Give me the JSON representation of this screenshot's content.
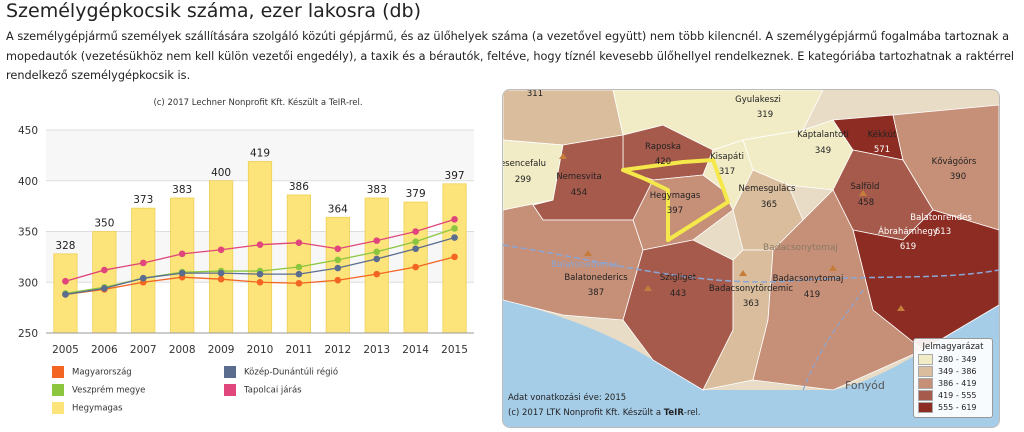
{
  "page": {
    "title": "Személygépkocsik száma, ezer lakosra (db)",
    "description": "A személygépjármű személyek szállítására szolgáló közúti gépjármű, és az ülőhelyek száma (a vezetővel együtt) nem több kilencnél. A személygépjármű fogalmába tartoznak a mopedautók (vezetésükhöz nem kell külön vezetői engedély), a taxik és a bérautók, feltéve, hogy tíznél kevesebb ülőhellyel rendelkeznek. E kategóriába tartozhatnak a raktérrel rendelkező személygépkocsik is."
  },
  "chart_data": {
    "type": "bar",
    "credit": "(c) 2017 Lechner Nonprofit Kft. Készült a TeIR-rel.",
    "categories": [
      "2005",
      "2006",
      "2007",
      "2008",
      "2009",
      "2010",
      "2011",
      "2012",
      "2013",
      "2014",
      "2015"
    ],
    "ylim": [
      250,
      450
    ],
    "yticks": [
      250,
      300,
      350,
      400,
      450
    ],
    "bar_series": {
      "name": "Hegymagas",
      "values": [
        328,
        350,
        373,
        383,
        400,
        419,
        386,
        364,
        383,
        379,
        397
      ],
      "labels": [
        "328",
        "350",
        "373",
        "383",
        "400",
        "419",
        "386",
        "364",
        "383",
        "379",
        "397"
      ],
      "color": "#fce37a"
    },
    "series": [
      {
        "name": "Magyarország",
        "color": "#f26522",
        "values": [
          288,
          293,
          300,
          305,
          303,
          300,
          299,
          302,
          308,
          315,
          325
        ]
      },
      {
        "name": "Veszprém megye",
        "color": "#8cc63f",
        "values": [
          289,
          295,
          304,
          310,
          311,
          311,
          315,
          322,
          330,
          340,
          353
        ]
      },
      {
        "name": "Közép-Dunántúli régió",
        "color": "#5b6d8f",
        "values": [
          288,
          294,
          304,
          309,
          309,
          308,
          308,
          314,
          323,
          333,
          344
        ]
      },
      {
        "name": "Tapolcai járás",
        "color": "#e0457b",
        "values": [
          301,
          312,
          319,
          328,
          332,
          337,
          339,
          333,
          341,
          350,
          362
        ]
      }
    ],
    "legend": [
      "Magyarország",
      "Közép-Dunántúli régió",
      "Veszprém megye",
      "Tapolcai járás",
      "Hegymagas"
    ]
  },
  "map": {
    "labels": [
      {
        "name": "",
        "value": "311"
      },
      {
        "name": "Gyulakeszi",
        "value": "319"
      },
      {
        "name": "Káptalantóti",
        "value": "349"
      },
      {
        "name": "Kékkút",
        "value": "571"
      },
      {
        "name": "Raposka",
        "value": "420"
      },
      {
        "name": "Kisapáti",
        "value": "317"
      },
      {
        "name": "esencefalu",
        "value": "299"
      },
      {
        "name": "Nemesvita",
        "value": "454"
      },
      {
        "name": "Hegymagas",
        "value": "397"
      },
      {
        "name": "Nemesgulács",
        "value": "365"
      },
      {
        "name": "Salföld",
        "value": "458"
      },
      {
        "name": "Kővágóörs",
        "value": "390"
      },
      {
        "name": "Balatonrendes",
        "value": ""
      },
      {
        "name": "Ábrahámhegy",
        "value": "613"
      },
      {
        "name": "",
        "value": "619"
      },
      {
        "name": "Balatonederics",
        "value": "387"
      },
      {
        "name": "Szigliget",
        "value": "443"
      },
      {
        "name": "Badacsonytomaj",
        "value": "419"
      },
      {
        "name": "Badacsonytördemic",
        "value": "363"
      }
    ],
    "place_labels": [
      "Badacsonytomaj",
      "Balatonederics",
      "Fonyód"
    ],
    "legend_title": "Jelmagyarázat",
    "legend": [
      {
        "label": "280 - 349",
        "color": "#f1ecc6"
      },
      {
        "label": "349 - 386",
        "color": "#d9bd9d"
      },
      {
        "label": "386 - 419",
        "color": "#c68f77"
      },
      {
        "label": "419 - 555",
        "color": "#a65a4c"
      },
      {
        "label": "555 - 619",
        "color": "#8c2c22"
      }
    ],
    "footer_year": "Adat vonatkozási éve: 2015",
    "footer_credit_prefix": "(c) 2017 LTK Nonprofit Kft. Készült a ",
    "footer_credit_bold": "TeIR",
    "footer_credit_suffix": "-rel."
  }
}
